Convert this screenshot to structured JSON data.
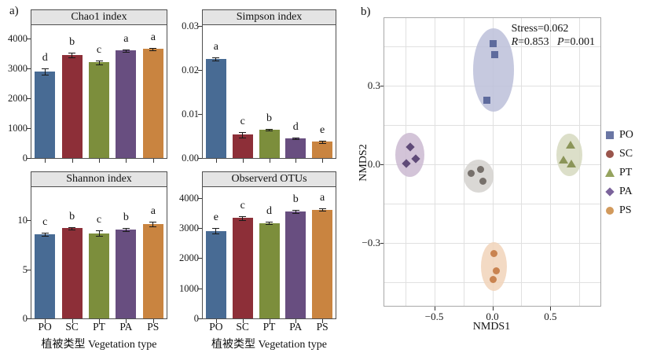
{
  "figure": {
    "panel_a_label": "a)",
    "panel_b_label": "b)"
  },
  "colors": {
    "bar_series": [
      "#486b94",
      "#8d2f38",
      "#7c8e3c",
      "#684e80",
      "#c98440"
    ],
    "title_strip_bg": "#e4e4e4",
    "panel_border": "#4f4f4f",
    "nmds_border": "#a8a8a8",
    "nmds_grid": "#e0e0e0"
  },
  "chart_data": [
    {
      "id": "chao1",
      "type": "bar",
      "title": "Chao1 index",
      "categories": [
        "PO",
        "SC",
        "PT",
        "PA",
        "PS"
      ],
      "values": [
        2900,
        3450,
        3200,
        3600,
        3650
      ],
      "errors": [
        100,
        80,
        60,
        40,
        40
      ],
      "sig_letters": [
        "d",
        "b",
        "c",
        "a",
        "a"
      ],
      "yticks": [
        0,
        1000,
        2000,
        3000,
        4000
      ],
      "ytick_labels": [
        "0",
        "1000",
        "2000",
        "3000",
        "4000"
      ],
      "ylim": [
        0,
        4450
      ],
      "show_xticklabels": false,
      "xlabel": ""
    },
    {
      "id": "simpson",
      "type": "bar",
      "title": "Simpson index",
      "categories": [
        "PO",
        "SC",
        "PT",
        "PA",
        "PS"
      ],
      "values": [
        0.0225,
        0.0053,
        0.0065,
        0.0045,
        0.0037
      ],
      "errors": [
        0.0004,
        0.0006,
        0.0002,
        0.0002,
        0.0003
      ],
      "sig_letters": [
        "a",
        "c",
        "b",
        "d",
        "e"
      ],
      "yticks": [
        0,
        0.01,
        0.02,
        0.03
      ],
      "ytick_labels": [
        "0.00",
        "0.01",
        "0.02",
        "0.03"
      ],
      "ylim": [
        0,
        0.0302
      ],
      "show_xticklabels": false,
      "xlabel": ""
    },
    {
      "id": "shannon",
      "type": "bar",
      "title": "Shannon index",
      "categories": [
        "PO",
        "SC",
        "PT",
        "PA",
        "PS"
      ],
      "values": [
        8.6,
        9.2,
        8.7,
        9.1,
        9.6
      ],
      "errors": [
        0.16,
        0.12,
        0.25,
        0.16,
        0.25
      ],
      "sig_letters": [
        "c",
        "b",
        "c",
        "b",
        "a"
      ],
      "yticks": [
        0,
        5,
        10
      ],
      "ytick_labels": [
        "0",
        "5",
        "10"
      ],
      "ylim": [
        0,
        13.4
      ],
      "show_xticklabels": true,
      "xlabel": "植被类型 Vegetation type"
    },
    {
      "id": "otus",
      "type": "bar",
      "title": "Observerd OTUs",
      "categories": [
        "PO",
        "SC",
        "PT",
        "PA",
        "PS"
      ],
      "values": [
        2910,
        3330,
        3170,
        3540,
        3610
      ],
      "errors": [
        80,
        65,
        50,
        50,
        40
      ],
      "sig_letters": [
        "e",
        "c",
        "d",
        "b",
        "a"
      ],
      "yticks": [
        0,
        1000,
        2000,
        3000,
        4000
      ],
      "ytick_labels": [
        "0",
        "1000",
        "2000",
        "3000",
        "4000"
      ],
      "ylim": [
        0,
        4360
      ],
      "show_xticklabels": true,
      "xlabel": "植被类型 Vegetation type"
    },
    {
      "id": "nmds",
      "type": "scatter",
      "xlabel": "NMDS1",
      "ylabel": "NMDS2",
      "annotation": {
        "stress": "Stress=0.062",
        "r": "R=0.853",
        "p": "P=0.001"
      },
      "xlim": [
        -0.93,
        0.93
      ],
      "ylim": [
        -0.54,
        0.558
      ],
      "xticks": [
        {
          "v": -0.5,
          "label": "−0.5"
        },
        {
          "v": 0,
          "label": "0.0"
        },
        {
          "v": 0.5,
          "label": "0.5"
        }
      ],
      "yticks": [
        {
          "v": 0.3,
          "label": "0.3"
        },
        {
          "v": 0,
          "label": "0.0"
        },
        {
          "v": -0.3,
          "label": "−0.3"
        }
      ],
      "minor_xticks": [
        -0.75,
        -0.25,
        0.25,
        0.75
      ],
      "minor_yticks": [
        0.45,
        0.15,
        -0.15,
        -0.45
      ],
      "groups": [
        {
          "name": "PO",
          "marker": "square",
          "color": "#5e6b9d",
          "legend_color": "#6a76a4",
          "ellipse": {
            "cx": 0.01,
            "cy": 0.36,
            "rx": 0.175,
            "ry": 0.158,
            "fill": "#bcbfd9"
          },
          "points": [
            [
              0.01,
              0.46
            ],
            [
              0.02,
              0.42
            ],
            [
              -0.05,
              0.245
            ]
          ]
        },
        {
          "name": "SC",
          "marker": "circle",
          "color": "#76706b",
          "legend_color": "#9a554c",
          "ellipse": {
            "cx": -0.12,
            "cy": -0.045,
            "rx": 0.13,
            "ry": 0.062,
            "fill": "#d3d1ce"
          },
          "points": [
            [
              -0.18,
              -0.035
            ],
            [
              -0.1,
              -0.02
            ],
            [
              -0.08,
              -0.065
            ]
          ]
        },
        {
          "name": "PT",
          "marker": "triangle",
          "color": "#8b9559",
          "legend_color": "#95a35e",
          "ellipse": {
            "cx": 0.665,
            "cy": 0.036,
            "rx": 0.112,
            "ry": 0.082,
            "fill": "#d6d9c0"
          },
          "points": [
            [
              0.67,
              0.075
            ],
            [
              0.61,
              0.018
            ],
            [
              0.68,
              0.003
            ]
          ]
        },
        {
          "name": "PA",
          "marker": "diamond",
          "color": "#5f4a78",
          "legend_color": "#7b639b",
          "ellipse": {
            "cx": -0.71,
            "cy": 0.036,
            "rx": 0.125,
            "ry": 0.085,
            "fill": "#cbbad1"
          },
          "points": [
            [
              -0.71,
              0.066
            ],
            [
              -0.66,
              0.021
            ],
            [
              -0.74,
              0.003
            ]
          ]
        },
        {
          "name": "PS",
          "marker": "circle",
          "color": "#c98350",
          "legend_color": "#d29a5c",
          "ellipse": {
            "cx": 0.013,
            "cy": -0.39,
            "rx": 0.112,
            "ry": 0.094,
            "fill": "#f1d4ba"
          },
          "points": [
            [
              0.013,
              -0.34
            ],
            [
              0.033,
              -0.405
            ],
            [
              0.007,
              -0.44
            ]
          ]
        }
      ],
      "legend_order": [
        "PO",
        "SC",
        "PT",
        "PA",
        "PS"
      ]
    }
  ]
}
